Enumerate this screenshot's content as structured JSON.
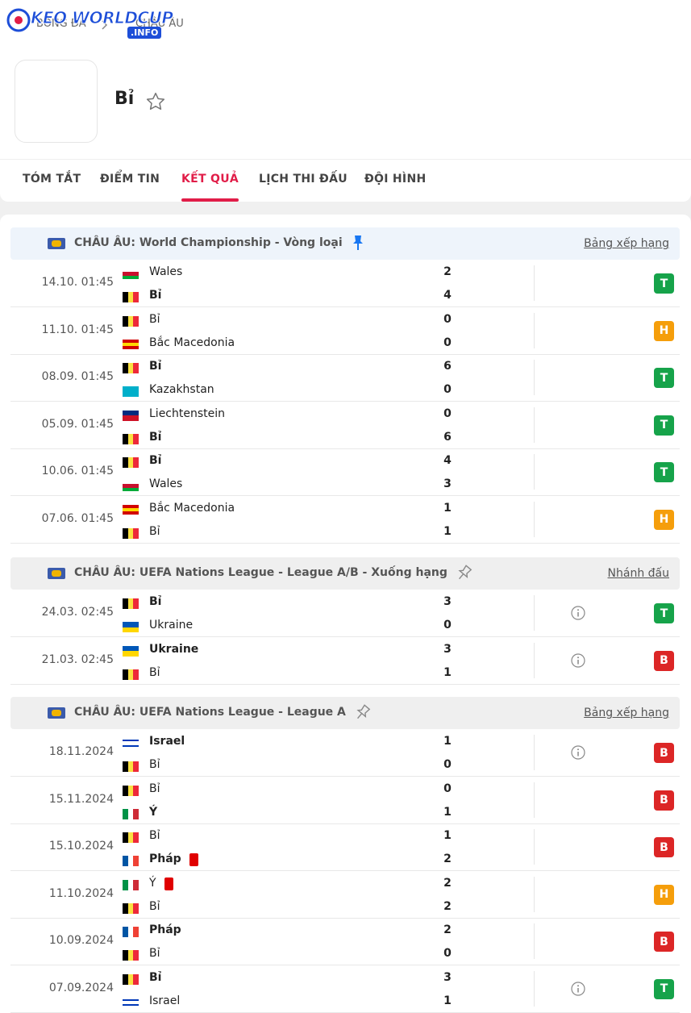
{
  "logo": {
    "text": "KEO WORLDCUP",
    "suffix": ".INFO"
  },
  "breadcrumb": [
    "BÓNG ĐÁ",
    "CHÂU ÂU"
  ],
  "team": {
    "name": "Bỉ",
    "flag": {
      "dir": "v",
      "colors": [
        "#000000",
        "#fae042",
        "#ed2939"
      ]
    }
  },
  "tabs": {
    "items": [
      "TÓM TẮT",
      "ĐIỂM TIN",
      "KẾT QUẢ",
      "LỊCH THI ĐẤU",
      "ĐỘI HÌNH"
    ],
    "active": 2
  },
  "competitions": [
    {
      "title": "CHÂU ÂU: World Championship - Vòng loại",
      "link": "Bảng xếp hạng",
      "pinned": true,
      "header_color": "#eef4fb",
      "matches": [
        {
          "date": "14.10. 01:45",
          "home": {
            "name": "Wales",
            "score": 2,
            "bold": false,
            "flag": {
              "dir": "h",
              "colors": [
                "#ffffff",
                "#c8102e",
                "#00ab39"
              ]
            }
          },
          "away": {
            "name": "Bỉ",
            "score": 4,
            "bold": true,
            "flag": {
              "dir": "v",
              "colors": [
                "#000000",
                "#fae042",
                "#ed2939"
              ]
            }
          },
          "info": false,
          "result": {
            "label": "T",
            "color": "#16a34a"
          }
        },
        {
          "date": "11.10. 01:45",
          "home": {
            "name": "Bỉ",
            "score": 0,
            "bold": false,
            "flag": {
              "dir": "v",
              "colors": [
                "#000000",
                "#fae042",
                "#ed2939"
              ]
            }
          },
          "away": {
            "name": "Bắc Macedonia",
            "score": 0,
            "bold": false,
            "flag": {
              "dir": "h",
              "colors": [
                "#d20000",
                "#ffd700",
                "#d20000"
              ]
            }
          },
          "info": false,
          "result": {
            "label": "H",
            "color": "#f59e0b"
          }
        },
        {
          "date": "08.09. 01:45",
          "home": {
            "name": "Bỉ",
            "score": 6,
            "bold": true,
            "flag": {
              "dir": "v",
              "colors": [
                "#000000",
                "#fae042",
                "#ed2939"
              ]
            }
          },
          "away": {
            "name": "Kazakhstan",
            "score": 0,
            "bold": false,
            "flag": {
              "dir": "h",
              "colors": [
                "#00afca",
                "#00afca"
              ]
            }
          },
          "info": false,
          "result": {
            "label": "T",
            "color": "#16a34a"
          }
        },
        {
          "date": "05.09. 01:45",
          "home": {
            "name": "Liechtenstein",
            "score": 0,
            "bold": false,
            "flag": {
              "dir": "h",
              "colors": [
                "#002b7f",
                "#ce1126"
              ]
            }
          },
          "away": {
            "name": "Bỉ",
            "score": 6,
            "bold": true,
            "flag": {
              "dir": "v",
              "colors": [
                "#000000",
                "#fae042",
                "#ed2939"
              ]
            }
          },
          "info": false,
          "result": {
            "label": "T",
            "color": "#16a34a"
          }
        },
        {
          "date": "10.06. 01:45",
          "home": {
            "name": "Bỉ",
            "score": 4,
            "bold": true,
            "flag": {
              "dir": "v",
              "colors": [
                "#000000",
                "#fae042",
                "#ed2939"
              ]
            }
          },
          "away": {
            "name": "Wales",
            "score": 3,
            "bold": false,
            "flag": {
              "dir": "h",
              "colors": [
                "#ffffff",
                "#c8102e",
                "#00ab39"
              ]
            }
          },
          "info": false,
          "result": {
            "label": "T",
            "color": "#16a34a"
          }
        },
        {
          "date": "07.06. 01:45",
          "home": {
            "name": "Bắc Macedonia",
            "score": 1,
            "bold": false,
            "flag": {
              "dir": "h",
              "colors": [
                "#d20000",
                "#ffd700",
                "#d20000"
              ]
            }
          },
          "away": {
            "name": "Bỉ",
            "score": 1,
            "bold": false,
            "flag": {
              "dir": "v",
              "colors": [
                "#000000",
                "#fae042",
                "#ed2939"
              ]
            }
          },
          "info": false,
          "result": {
            "label": "H",
            "color": "#f59e0b"
          }
        }
      ]
    },
    {
      "title": "CHÂU ÂU: UEFA Nations League - League A/B - Xuống hạng",
      "link": "Nhánh đấu",
      "pinned": false,
      "header_color": "#efefef",
      "matches": [
        {
          "date": "24.03. 02:45",
          "home": {
            "name": "Bỉ",
            "score": 3,
            "bold": true,
            "flag": {
              "dir": "v",
              "colors": [
                "#000000",
                "#fae042",
                "#ed2939"
              ]
            }
          },
          "away": {
            "name": "Ukraine",
            "score": 0,
            "bold": false,
            "flag": {
              "dir": "h",
              "colors": [
                "#0057b7",
                "#ffd700"
              ]
            }
          },
          "info": true,
          "result": {
            "label": "T",
            "color": "#16a34a"
          }
        },
        {
          "date": "21.03. 02:45",
          "home": {
            "name": "Ukraine",
            "score": 3,
            "bold": true,
            "flag": {
              "dir": "h",
              "colors": [
                "#0057b7",
                "#ffd700"
              ]
            }
          },
          "away": {
            "name": "Bỉ",
            "score": 1,
            "bold": false,
            "flag": {
              "dir": "v",
              "colors": [
                "#000000",
                "#fae042",
                "#ed2939"
              ]
            }
          },
          "info": true,
          "result": {
            "label": "B",
            "color": "#dc2626"
          }
        }
      ]
    },
    {
      "title": "CHÂU ÂU: UEFA Nations League - League A",
      "link": "Bảng xếp hạng",
      "pinned": false,
      "header_color": "#efefef",
      "matches": [
        {
          "date": "18.11.2024",
          "home": {
            "name": "Israel",
            "score": 1,
            "bold": true,
            "flag": {
              "dir": "h",
              "colors": [
                "#ffffff",
                "#0038b8",
                "#ffffff",
                "#ffffff",
                "#0038b8",
                "#ffffff"
              ]
            }
          },
          "away": {
            "name": "Bỉ",
            "score": 0,
            "bold": false,
            "flag": {
              "dir": "v",
              "colors": [
                "#000000",
                "#fae042",
                "#ed2939"
              ]
            }
          },
          "info": true,
          "result": {
            "label": "B",
            "color": "#dc2626"
          }
        },
        {
          "date": "15.11.2024",
          "home": {
            "name": "Bỉ",
            "score": 0,
            "bold": false,
            "flag": {
              "dir": "v",
              "colors": [
                "#000000",
                "#fae042",
                "#ed2939"
              ]
            }
          },
          "away": {
            "name": "Ý",
            "score": 1,
            "bold": true,
            "flag": {
              "dir": "v",
              "colors": [
                "#009246",
                "#ffffff",
                "#ce2b37"
              ]
            }
          },
          "info": false,
          "result": {
            "label": "B",
            "color": "#dc2626"
          }
        },
        {
          "date": "15.10.2024",
          "home": {
            "name": "Bỉ",
            "score": 1,
            "bold": false,
            "flag": {
              "dir": "v",
              "colors": [
                "#000000",
                "#fae042",
                "#ed2939"
              ]
            }
          },
          "away": {
            "name": "Pháp",
            "score": 2,
            "bold": true,
            "red_card": true,
            "flag": {
              "dir": "v",
              "colors": [
                "#0055a4",
                "#ffffff",
                "#ef4135"
              ]
            }
          },
          "info": false,
          "result": {
            "label": "B",
            "color": "#dc2626"
          }
        },
        {
          "date": "11.10.2024",
          "home": {
            "name": "Ý",
            "score": 2,
            "bold": false,
            "red_card": true,
            "flag": {
              "dir": "v",
              "colors": [
                "#009246",
                "#ffffff",
                "#ce2b37"
              ]
            }
          },
          "away": {
            "name": "Bỉ",
            "score": 2,
            "bold": false,
            "flag": {
              "dir": "v",
              "colors": [
                "#000000",
                "#fae042",
                "#ed2939"
              ]
            }
          },
          "info": false,
          "result": {
            "label": "H",
            "color": "#f59e0b"
          }
        },
        {
          "date": "10.09.2024",
          "home": {
            "name": "Pháp",
            "score": 2,
            "bold": true,
            "flag": {
              "dir": "v",
              "colors": [
                "#0055a4",
                "#ffffff",
                "#ef4135"
              ]
            }
          },
          "away": {
            "name": "Bỉ",
            "score": 0,
            "bold": false,
            "flag": {
              "dir": "v",
              "colors": [
                "#000000",
                "#fae042",
                "#ed2939"
              ]
            }
          },
          "info": false,
          "result": {
            "label": "B",
            "color": "#dc2626"
          }
        },
        {
          "date": "07.09.2024",
          "home": {
            "name": "Bỉ",
            "score": 3,
            "bold": true,
            "flag": {
              "dir": "v",
              "colors": [
                "#000000",
                "#fae042",
                "#ed2939"
              ]
            }
          },
          "away": {
            "name": "Israel",
            "score": 1,
            "bold": false,
            "flag": {
              "dir": "h",
              "colors": [
                "#ffffff",
                "#0038b8",
                "#ffffff",
                "#ffffff",
                "#0038b8",
                "#ffffff"
              ]
            }
          },
          "info": true,
          "result": {
            "label": "T",
            "color": "#16a34a"
          }
        }
      ]
    }
  ]
}
